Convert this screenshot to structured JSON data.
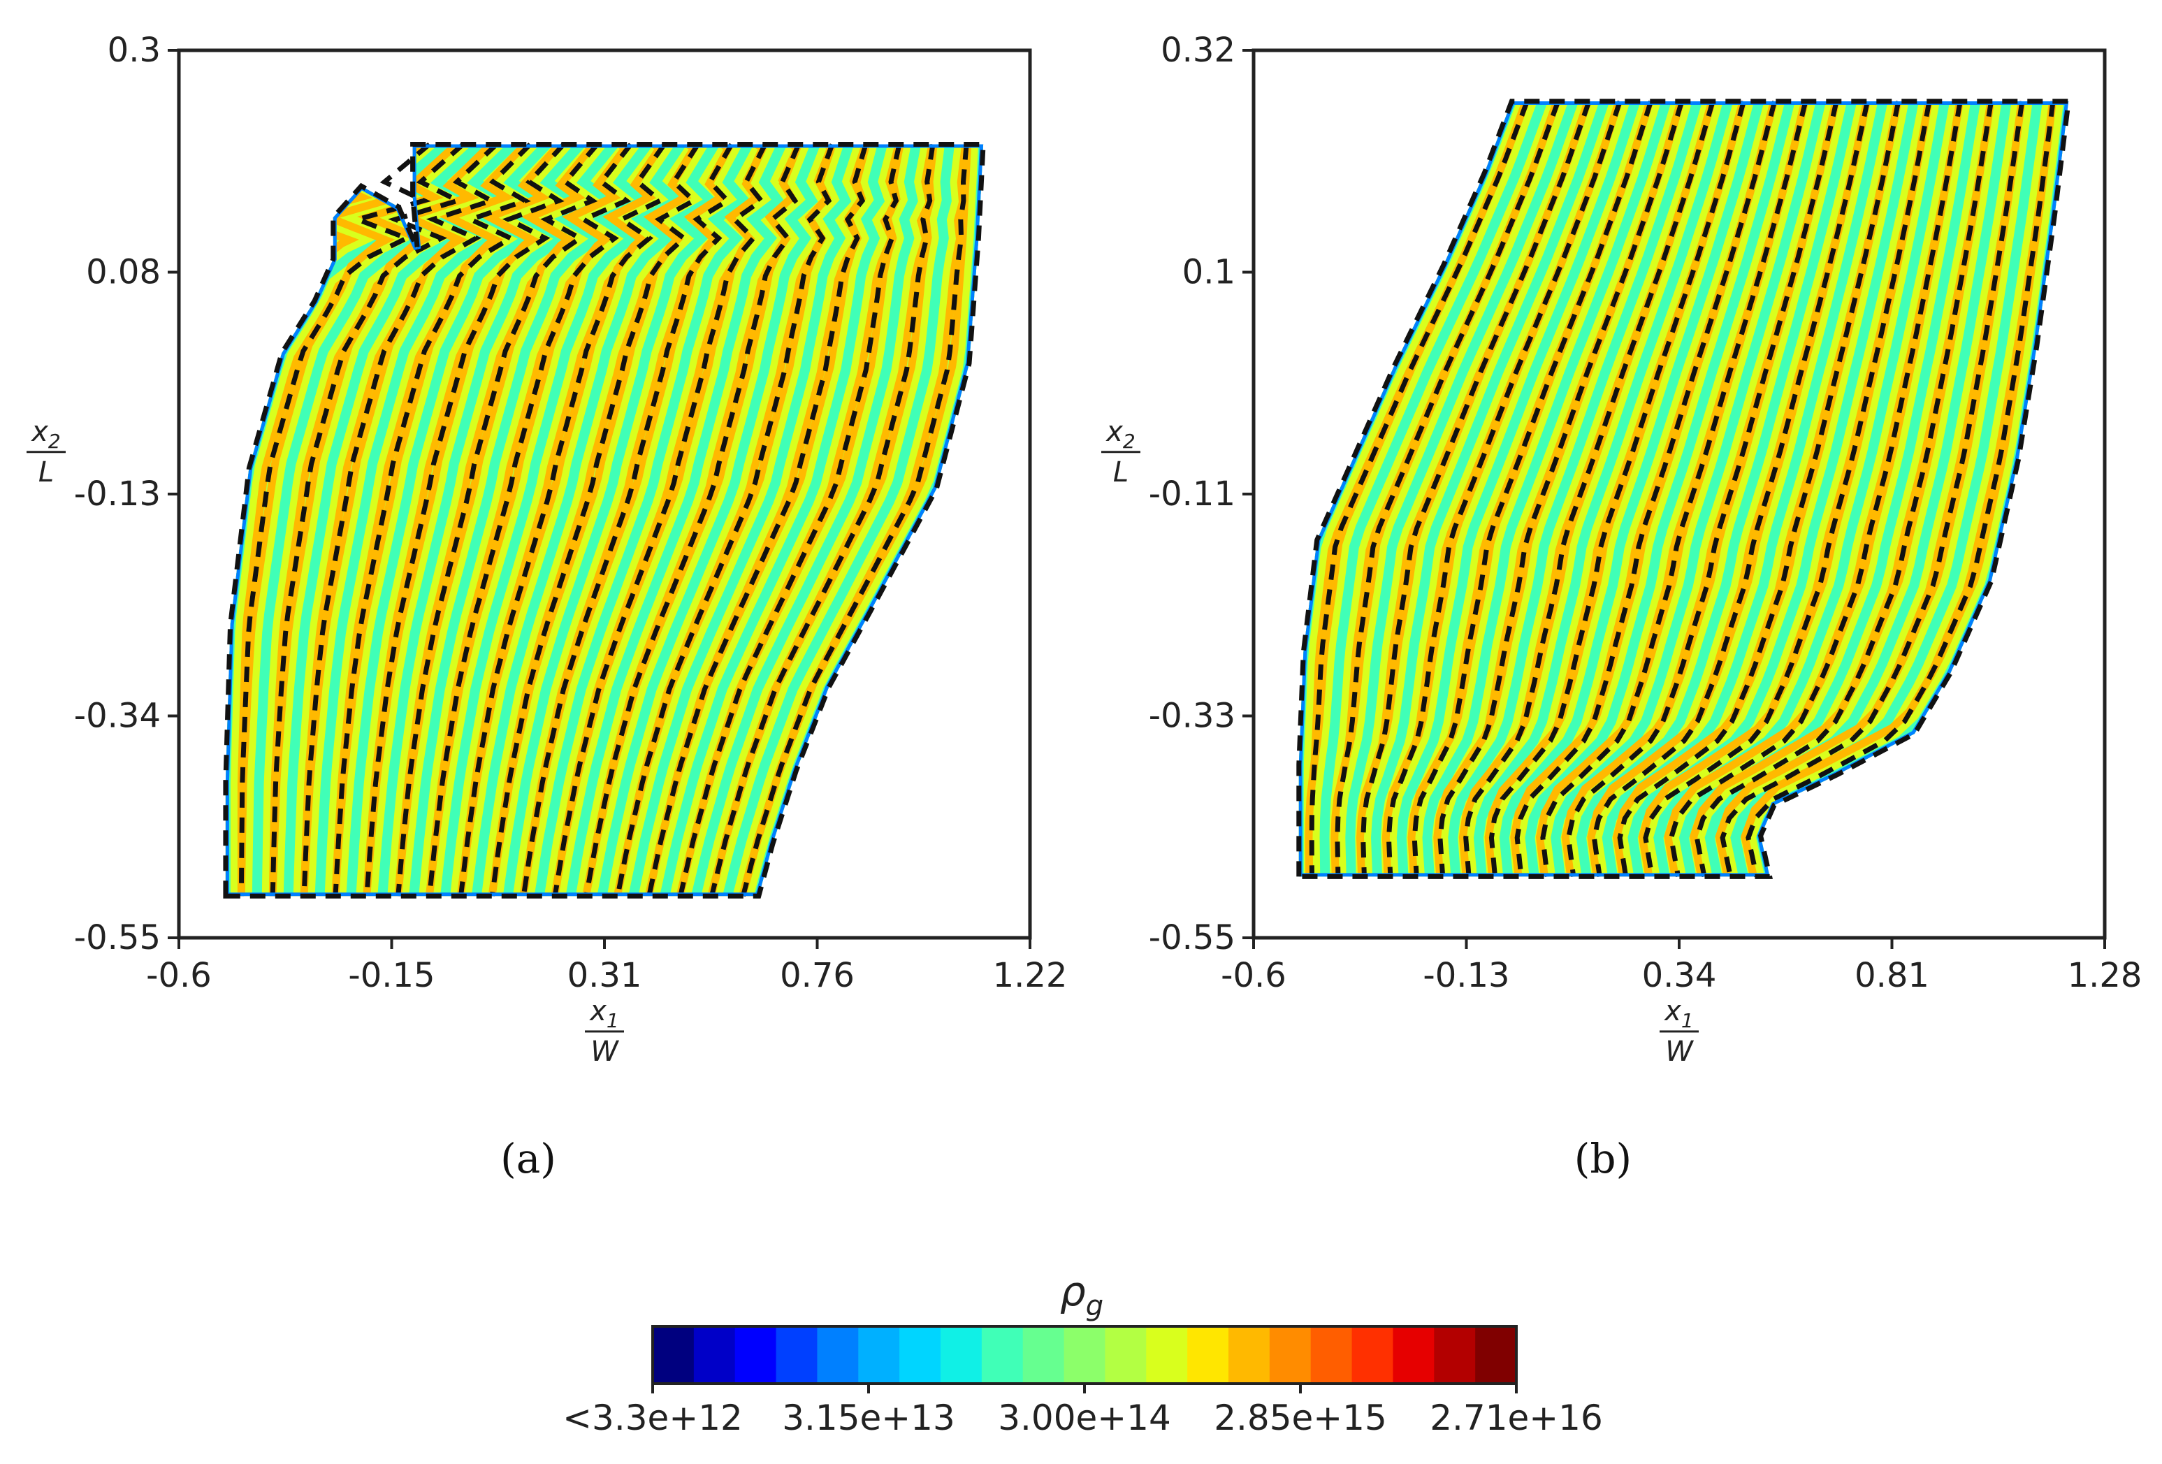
{
  "chart_data": [
    {
      "type": "heatmap",
      "panel_label": "(a)",
      "xlabel": {
        "numerator": "x",
        "numerator_sub": "1",
        "denominator": "W"
      },
      "ylabel": {
        "numerator": "x",
        "numerator_sub": "2",
        "denominator": "L"
      },
      "xlim": [
        -0.6,
        1.22
      ],
      "ylim": [
        -0.55,
        0.3
      ],
      "xticks": [
        "-0.6",
        "-0.15",
        "0.31",
        "0.76",
        "1.22"
      ],
      "yticks": [
        "-0.55",
        "-0.34",
        "-0.13",
        "0.08",
        "0.3"
      ],
      "field": "rho_g",
      "grid": false,
      "domain_top_y": 0.21,
      "domain_bottom_y": -0.51,
      "left_boundary": [
        [
          -0.5,
          -0.51
        ],
        [
          -0.5,
          -0.4
        ],
        [
          -0.49,
          -0.25
        ],
        [
          -0.45,
          -0.1
        ],
        [
          -0.38,
          0.01
        ],
        [
          -0.31,
          0.06
        ],
        [
          -0.27,
          0.1
        ],
        [
          -0.27,
          0.14
        ],
        [
          -0.21,
          0.17
        ],
        [
          -0.13,
          0.15
        ],
        [
          -0.09,
          0.11
        ],
        [
          -0.1,
          0.16
        ],
        [
          -0.1,
          0.21
        ]
      ],
      "right_boundary": [
        [
          1.12,
          0.21
        ],
        [
          1.11,
          0.12
        ],
        [
          1.09,
          0.0
        ],
        [
          1.02,
          -0.12
        ],
        [
          0.9,
          -0.22
        ],
        [
          0.79,
          -0.31
        ],
        [
          0.72,
          -0.39
        ],
        [
          0.67,
          -0.46
        ],
        [
          0.64,
          -0.51
        ]
      ],
      "streamline_count": 17,
      "colorbar": {
        "label": "ρ",
        "label_sub": "g",
        "tick_labels": [
          "<3.3e+12",
          "3.15e+13",
          "3.00e+14",
          "2.85e+15",
          "2.71e+16"
        ]
      }
    },
    {
      "type": "heatmap",
      "panel_label": "(b)",
      "xlabel": {
        "numerator": "x",
        "numerator_sub": "1",
        "denominator": "W"
      },
      "ylabel": {
        "numerator": "x",
        "numerator_sub": "2",
        "denominator": "L"
      },
      "xlim": [
        -0.6,
        1.28
      ],
      "ylim": [
        -0.55,
        0.32
      ],
      "xticks": [
        "-0.6",
        "-0.13",
        "0.34",
        "0.81",
        "1.28"
      ],
      "yticks": [
        "-0.55",
        "-0.33",
        "-0.11",
        "0.1",
        "0.32"
      ],
      "field": "rho_g",
      "grid": false,
      "domain_top_y": 0.27,
      "domain_bottom_y": -0.49,
      "left_boundary": [
        [
          -0.5,
          -0.49
        ],
        [
          -0.5,
          -0.38
        ],
        [
          -0.49,
          -0.27
        ],
        [
          -0.46,
          -0.16
        ],
        [
          -0.39,
          -0.09
        ],
        [
          -0.29,
          0.01
        ],
        [
          -0.18,
          0.11
        ],
        [
          -0.09,
          0.2
        ],
        [
          -0.03,
          0.27
        ]
      ],
      "right_boundary": [
        [
          1.2,
          0.27
        ],
        [
          1.17,
          0.16
        ],
        [
          1.13,
          0.03
        ],
        [
          1.09,
          -0.08
        ],
        [
          1.03,
          -0.2
        ],
        [
          0.94,
          -0.29
        ],
        [
          0.86,
          -0.35
        ],
        [
          0.69,
          -0.39
        ],
        [
          0.55,
          -0.42
        ],
        [
          0.52,
          -0.45
        ],
        [
          0.54,
          -0.49
        ]
      ],
      "streamline_count": 18,
      "colorbar": {
        "label": "ρ",
        "label_sub": "g",
        "tick_labels": [
          "<3.3e+12",
          "3.15e+13",
          "3.00e+14",
          "2.85e+15",
          "2.71e+16"
        ]
      }
    }
  ],
  "colorbar": {
    "label": "ρ",
    "label_sub": "g",
    "scale": "log",
    "colormap": "jet",
    "colors": [
      "#00007f",
      "#0000c8",
      "#0000ff",
      "#0040ff",
      "#0080ff",
      "#00b0ff",
      "#00d5ff",
      "#10f0e6",
      "#40ffb7",
      "#66ff90",
      "#8cff6a",
      "#b3ff43",
      "#d9ff1d",
      "#ffe600",
      "#ffb900",
      "#ff8c00",
      "#ff5e00",
      "#ff3000",
      "#e60000",
      "#b30000",
      "#800000"
    ],
    "tick_labels": [
      "<3.3e+12",
      "3.15e+13",
      "3.00e+14",
      "2.85e+15",
      "2.71e+16"
    ]
  }
}
